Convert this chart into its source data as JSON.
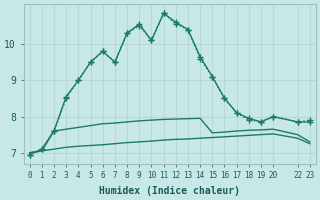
{
  "xlabel": "Humidex (Indice chaleur)",
  "bg_color": "#c8e8e8",
  "grid_color": "#b8d8d8",
  "line_color": "#1a7a6a",
  "xlim": [
    -0.5,
    23.5
  ],
  "ylim": [
    6.7,
    11.1
  ],
  "xticks": [
    0,
    1,
    2,
    3,
    4,
    5,
    6,
    7,
    8,
    9,
    10,
    11,
    12,
    13,
    14,
    15,
    16,
    17,
    18,
    19,
    20,
    22,
    23
  ],
  "xtick_labels": [
    "0",
    "1",
    "2",
    "3",
    "4",
    "5",
    "6",
    "7",
    "8",
    "9",
    "10",
    "11",
    "12",
    "13",
    "14",
    "15",
    "16",
    "17",
    "18",
    "19",
    "20",
    "22",
    "23"
  ],
  "yticks": [
    7,
    8,
    9,
    10
  ],
  "line1_x": [
    0,
    1,
    2,
    3,
    4,
    5,
    6,
    7,
    8,
    9,
    10,
    11,
    12,
    13,
    14,
    15,
    16,
    17,
    18,
    19,
    20,
    22,
    23
  ],
  "line1_y": [
    6.95,
    7.1,
    7.6,
    8.5,
    9.0,
    9.5,
    9.8,
    9.5,
    10.3,
    10.5,
    10.1,
    10.85,
    10.55,
    10.4,
    9.6,
    9.1,
    8.5,
    8.1,
    7.9,
    7.85,
    8.0,
    7.85,
    7.9
  ],
  "line2_x": [
    0,
    1,
    2,
    3,
    4,
    5,
    6,
    7,
    8,
    9,
    10,
    11,
    12,
    13,
    14,
    15,
    16,
    17,
    18,
    19,
    20,
    22,
    23
  ],
  "line2_y": [
    6.95,
    7.1,
    7.6,
    8.55,
    9.0,
    9.5,
    9.8,
    9.5,
    10.3,
    10.55,
    10.1,
    10.85,
    10.6,
    10.4,
    9.65,
    9.1,
    8.5,
    8.1,
    7.95,
    7.85,
    8.0,
    7.85,
    7.85
  ],
  "line3_x": [
    0,
    1,
    2,
    3,
    4,
    5,
    6,
    7,
    8,
    9,
    10,
    11,
    12,
    13,
    14,
    15,
    16,
    17,
    18,
    19,
    20,
    22,
    23
  ],
  "line3_y": [
    7.0,
    7.05,
    7.6,
    7.65,
    7.7,
    7.75,
    7.8,
    7.82,
    7.85,
    7.88,
    7.9,
    7.92,
    7.93,
    7.94,
    7.95,
    7.55,
    7.57,
    7.6,
    7.62,
    7.63,
    7.65,
    7.5,
    7.3
  ],
  "line4_x": [
    0,
    1,
    2,
    3,
    4,
    5,
    6,
    7,
    8,
    9,
    10,
    11,
    12,
    13,
    14,
    15,
    16,
    17,
    18,
    19,
    20,
    22,
    23
  ],
  "line4_y": [
    7.0,
    7.05,
    7.1,
    7.15,
    7.18,
    7.2,
    7.22,
    7.25,
    7.28,
    7.3,
    7.32,
    7.35,
    7.37,
    7.38,
    7.4,
    7.42,
    7.44,
    7.46,
    7.48,
    7.5,
    7.52,
    7.4,
    7.25
  ]
}
